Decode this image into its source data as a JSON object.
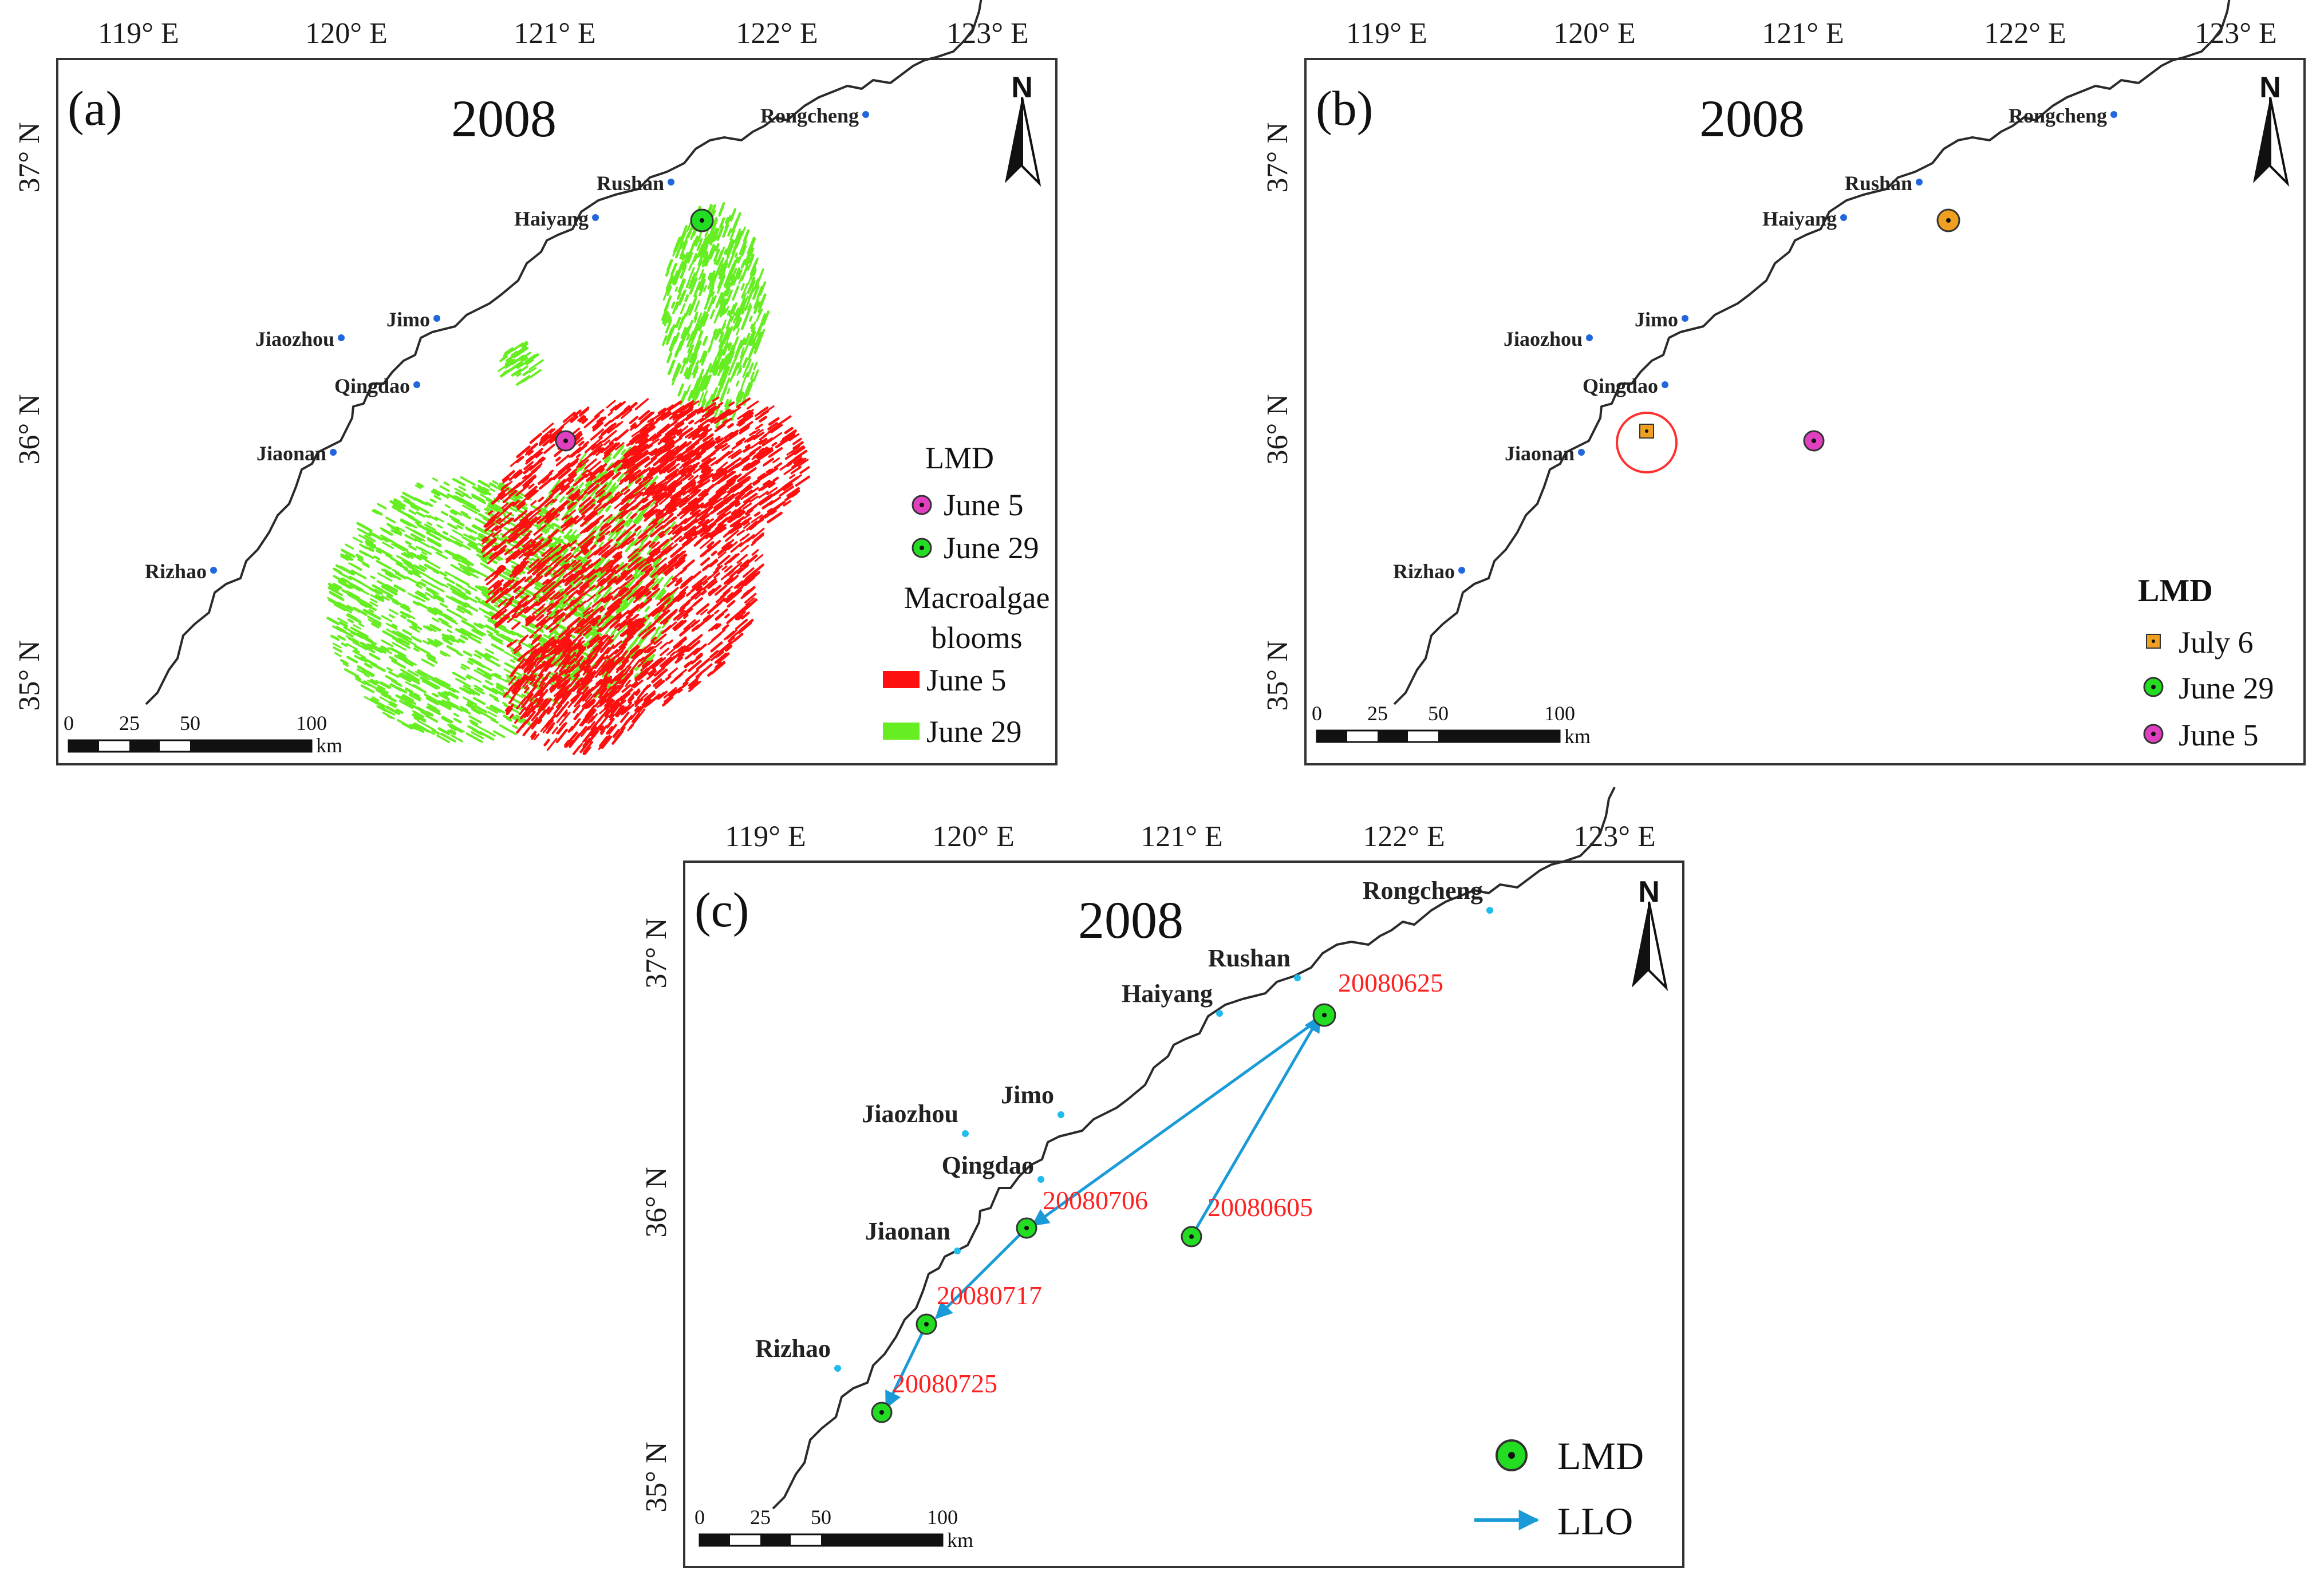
{
  "figure": {
    "lon_ticks": [
      "119° E",
      "120° E",
      "121° E",
      "122° E",
      "123° E"
    ],
    "lat_ticks": [
      "37° N",
      "36° N",
      "35° N"
    ],
    "year": "2008",
    "scale_labels": [
      "0",
      "25",
      "50",
      "100"
    ],
    "scale_unit": "km",
    "north_label": "N",
    "cities": [
      "Rongcheng",
      "Rushan",
      "Haiyang",
      "Jimo",
      "Jiaozhou",
      "Qingdao",
      "Jiaonan",
      "Rizhao"
    ],
    "colors": {
      "lmd_june5": "#e040c0",
      "lmd_june29": "#22dd22",
      "lmd_july6": "#f0a020",
      "bloom_june5": "#ff1010",
      "bloom_june29": "#66ee22",
      "llo": "#1a9ad6",
      "highlight": "#ff3030"
    }
  },
  "panel_a": {
    "label": "(a)",
    "legend_title": "LMD",
    "lmd_items": [
      "June 5",
      "June 29"
    ],
    "bloom_title_line1": "Macroalgae",
    "bloom_title_line2": "blooms",
    "bloom_items": [
      "June 5",
      "June 29"
    ]
  },
  "panel_b": {
    "label": "(b)",
    "legend_title": "LMD",
    "items": [
      "July 6",
      "June 29",
      "June 5"
    ]
  },
  "panel_c": {
    "label": "(c)",
    "dates": [
      "20080625",
      "20080706",
      "20080605",
      "20080717",
      "20080725"
    ],
    "legend_items": [
      "LMD",
      "LLO"
    ]
  }
}
